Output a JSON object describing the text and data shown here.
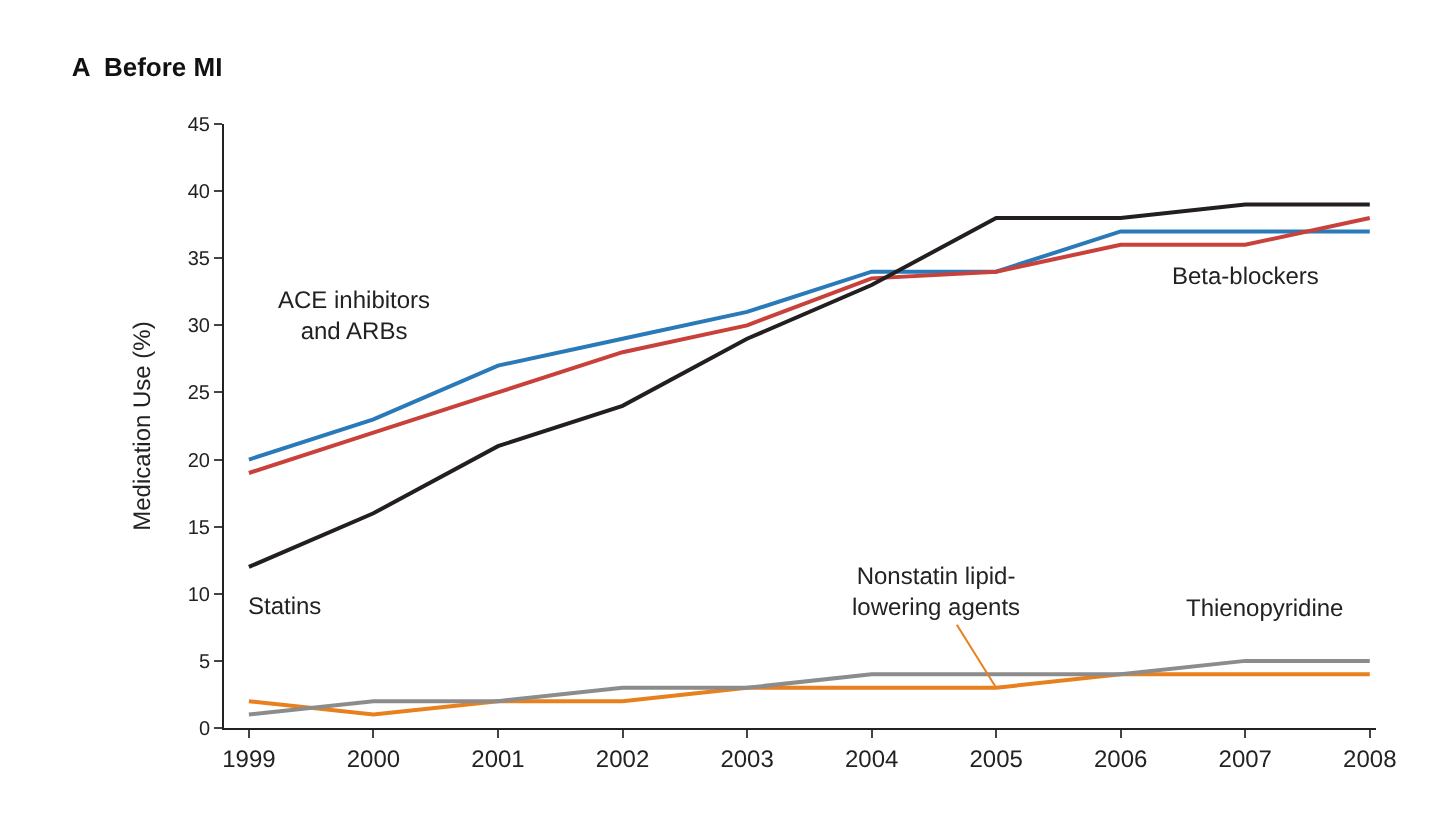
{
  "chart_data": {
    "type": "line",
    "title": "A  Before MI",
    "ylabel": "Medication Use (%)",
    "x": [
      1999,
      2000,
      2001,
      2002,
      2003,
      2004,
      2005,
      2006,
      2007,
      2008
    ],
    "series": [
      {
        "name": "ACE inhibitors and ARBs",
        "color": "#2a7ab9",
        "values": [
          20,
          23,
          27,
          29,
          31,
          34,
          34,
          37,
          37,
          37
        ]
      },
      {
        "name": "Beta-blockers",
        "color": "#c8413a",
        "values": [
          19,
          22,
          25,
          28,
          30,
          33.5,
          34,
          36,
          36,
          38
        ]
      },
      {
        "name": "Statins",
        "color": "#231f20",
        "values": [
          12,
          16,
          21,
          24,
          29,
          33,
          38,
          38,
          39,
          39
        ]
      },
      {
        "name": "Nonstatin lipid-lowering agents",
        "color": "#e8801e",
        "values": [
          2,
          1,
          2,
          2,
          3,
          3,
          3,
          4,
          4,
          4
        ]
      },
      {
        "name": "Thienopyridine",
        "color": "#8c8c8c",
        "values": [
          1,
          2,
          2,
          3,
          3,
          4,
          4,
          4,
          5,
          5
        ]
      }
    ],
    "xlim": [
      1998.8,
      2008.05
    ],
    "xticks": [
      1999,
      2000,
      2001,
      2002,
      2003,
      2004,
      2005,
      2006,
      2007,
      2008
    ],
    "ylim": [
      0,
      45
    ],
    "yticks": [
      0,
      5,
      10,
      15,
      20,
      25,
      30,
      35,
      40,
      45
    ],
    "legend": false,
    "marker": "none",
    "line_style": "solid"
  }
}
